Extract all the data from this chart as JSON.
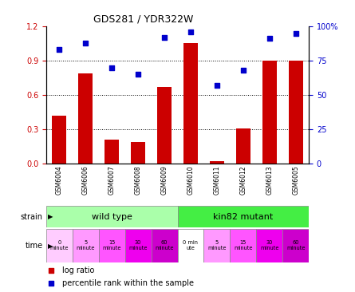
{
  "title": "GDS281 / YDR322W",
  "categories": [
    "GSM6004",
    "GSM6006",
    "GSM6007",
    "GSM6008",
    "GSM6009",
    "GSM6010",
    "GSM6011",
    "GSM6012",
    "GSM6013",
    "GSM6005"
  ],
  "log_ratio": [
    0.42,
    0.79,
    0.21,
    0.19,
    0.67,
    1.05,
    0.02,
    0.31,
    0.9,
    0.9
  ],
  "percentile": [
    83,
    88,
    70,
    65,
    92,
    96,
    57,
    68,
    91,
    95
  ],
  "ylim_left": [
    0,
    1.2
  ],
  "ylim_right": [
    0,
    100
  ],
  "yticks_left": [
    0,
    0.3,
    0.6,
    0.9,
    1.2
  ],
  "yticks_right": [
    0,
    25,
    50,
    75,
    100
  ],
  "bar_color": "#cc0000",
  "dot_color": "#0000cc",
  "strain_color_wt": "#aaffaa",
  "strain_color_mut": "#44ee44",
  "time_colors": [
    "#ffccff",
    "#ff88ff",
    "#ff44ff",
    "#ee00ee",
    "#dd00dd",
    "#ffccff",
    "#ff88ff",
    "#ff44ff",
    "#ee00ee",
    "#dd00dd"
  ],
  "legend_bar_label": "log ratio",
  "legend_dot_label": "percentile rank within the sample",
  "bg_color": "#ffffff",
  "tick_label_color_left": "#cc0000",
  "tick_label_color_right": "#0000cc"
}
